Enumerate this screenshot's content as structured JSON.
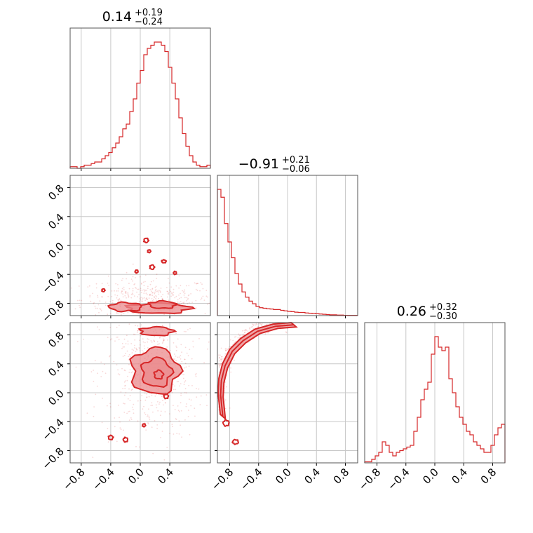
{
  "chart_data": {
    "type": "corner",
    "color": "#d62728",
    "fill_color": "#eb8a8c",
    "grid": true,
    "parameters": [
      {
        "title": {
          "median": "0.14",
          "plus": "+0.19",
          "minus": "−0.24"
        },
        "range": [
          -0.95,
          0.95
        ]
      },
      {
        "title": {
          "median": "−0.91",
          "plus": "+0.21",
          "minus": "−0.06"
        },
        "range": [
          -0.97,
          0.97
        ]
      },
      {
        "title": {
          "median": "0.26",
          "plus": "+0.32",
          "minus": "−0.30"
        },
        "range": [
          -0.97,
          0.97
        ]
      }
    ],
    "tick_values": {
      "p0_x": [
        -0.8,
        -0.4,
        0.0,
        0.4
      ],
      "p1_x": [
        -0.8,
        -0.4,
        0.0,
        0.4,
        0.8
      ],
      "p2_x": [
        -0.8,
        -0.4,
        0.0,
        0.4,
        0.8
      ],
      "p1_y": [
        0.8,
        0.4,
        0.0,
        -0.4,
        -0.8
      ],
      "p2_y": [
        0.8,
        0.4,
        0.0,
        -0.4,
        -0.8
      ]
    },
    "tick_labels": {
      "p0_x": [
        "−0.8",
        "−0.4",
        "0.0",
        "0.4"
      ],
      "p1_x": [
        "−0.8",
        "−0.4",
        "0.0",
        "0.4",
        "0.8"
      ],
      "p2_x": [
        "−0.8",
        "−0.4",
        "0.0",
        "0.4",
        "0.8"
      ],
      "p1_y": [
        "0.8",
        "0.4",
        "0.0",
        "−0.4",
        "−0.8"
      ],
      "p2_y": [
        "0.8",
        "0.4",
        "0.0",
        "−0.4",
        "−0.8"
      ]
    },
    "histograms": [
      {
        "parameter": 0,
        "bin_edges_range": [
          -0.95,
          0.95
        ],
        "counts": [
          0.5,
          0.5,
          0,
          0.5,
          1,
          1,
          1.5,
          2,
          2,
          3,
          4,
          5,
          6.5,
          8,
          10,
          12.5,
          14,
          18,
          22,
          27,
          31,
          36,
          38,
          39,
          40,
          40,
          39,
          37,
          32,
          27,
          22,
          16,
          11,
          7,
          4,
          2,
          1,
          0.5,
          0.5,
          1
        ]
      },
      {
        "parameter": 1,
        "bin_edges_range": [
          -0.97,
          0.97
        ],
        "counts": [
          48,
          45,
          35,
          28,
          22,
          16,
          12,
          9,
          7,
          5.5,
          4.5,
          3.5,
          3,
          2.8,
          2.6,
          2.5,
          2.3,
          2.3,
          2,
          1.8,
          1.6,
          1.5,
          1.3,
          1.2,
          1.2,
          1,
          0.9,
          0.8,
          0.7,
          0.6,
          0.5,
          0.4,
          0.3,
          0.3,
          0.2,
          0.2,
          0.1,
          0.1,
          0.1,
          0.1
        ]
      },
      {
        "parameter": 2,
        "bin_edges_range": [
          -0.97,
          0.97
        ],
        "counts": [
          0.3,
          0.3,
          1,
          2,
          3,
          6,
          5,
          3,
          2,
          3,
          3.5,
          4,
          4.5,
          5,
          9,
          13,
          18,
          21,
          23,
          31,
          36,
          33,
          32,
          33,
          24,
          20,
          16,
          13,
          11,
          9,
          8,
          6,
          5,
          4,
          3,
          3,
          5,
          8,
          10,
          11
        ]
      }
    ],
    "contours_2d": [
      {
        "x_param": 0,
        "y_param": 1,
        "levels": [
          {
            "center": [
              0.25,
              -0.87
            ],
            "radii": [
              0.42,
              0.07
            ]
          },
          {
            "center": [
              -0.2,
              -0.85
            ],
            "radii": [
              0.22,
              0.06
            ]
          },
          {
            "center": [
              0.3,
              -0.82
            ],
            "radii": [
              0.18,
              0.05
            ]
          },
          {
            "center": [
              0.08,
              0.07
            ],
            "radii": [
              0.03,
              0.03
            ]
          },
          {
            "center": [
              0.12,
              -0.08
            ],
            "radii": [
              0.02,
              0.02
            ]
          },
          {
            "center": [
              0.16,
              -0.3
            ],
            "radii": [
              0.03,
              0.03
            ]
          },
          {
            "center": [
              0.32,
              -0.22
            ],
            "radii": [
              0.03,
              0.02
            ]
          },
          {
            "center": [
              0.47,
              -0.38
            ],
            "radii": [
              0.02,
              0.02
            ]
          },
          {
            "center": [
              -0.05,
              -0.36
            ],
            "radii": [
              0.02,
              0.02
            ]
          },
          {
            "center": [
              -0.5,
              -0.62
            ],
            "radii": [
              0.02,
              0.02
            ]
          }
        ],
        "scatter_center": [
          0.1,
          -0.75
        ],
        "scatter_spread": [
          0.45,
          0.15
        ]
      },
      {
        "x_param": 0,
        "y_param": 2,
        "levels": [
          {
            "center": [
              0.2,
              0.3
            ],
            "radii": [
              0.32,
              0.32
            ]
          },
          {
            "center": [
              0.22,
              0.28
            ],
            "radii": [
              0.2,
              0.2
            ]
          },
          {
            "center": [
              0.25,
              0.25
            ],
            "radii": [
              0.06,
              0.06
            ]
          },
          {
            "center": [
              0.22,
              0.85
            ],
            "radii": [
              0.22,
              0.06
            ]
          },
          {
            "center": [
              -0.2,
              -0.65
            ],
            "radii": [
              0.03,
              0.03
            ]
          },
          {
            "center": [
              -0.4,
              -0.62
            ],
            "radii": [
              0.03,
              0.03
            ]
          },
          {
            "center": [
              0.05,
              -0.45
            ],
            "radii": [
              0.02,
              0.02
            ]
          },
          {
            "center": [
              0.35,
              -0.05
            ],
            "radii": [
              0.03,
              0.03
            ]
          }
        ],
        "scatter_center": [
          0.15,
          0.25
        ],
        "scatter_spread": [
          0.35,
          0.45
        ]
      },
      {
        "x_param": 1,
        "y_param": 2,
        "arc": [
          [
            -0.93,
            -0.3
          ],
          [
            -0.96,
            0.0
          ],
          [
            -0.95,
            0.2
          ],
          [
            -0.9,
            0.4
          ],
          [
            -0.8,
            0.6
          ],
          [
            -0.65,
            0.75
          ],
          [
            -0.45,
            0.88
          ],
          [
            -0.2,
            0.95
          ],
          [
            0.05,
            0.97
          ]
        ],
        "extra_contours": [
          {
            "center": [
              -0.85,
              -0.42
            ],
            "radii": [
              0.04,
              0.04
            ]
          },
          {
            "center": [
              -0.72,
              -0.68
            ],
            "radii": [
              0.04,
              0.03
            ]
          }
        ],
        "scatter_spread": 0.05
      }
    ]
  }
}
